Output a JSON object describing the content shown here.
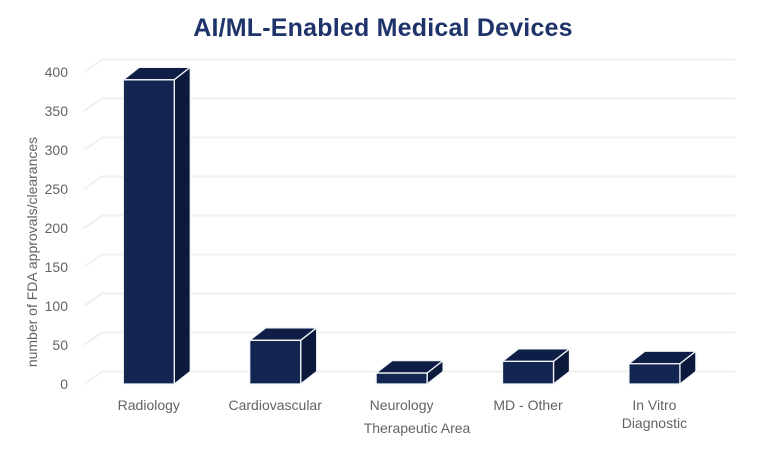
{
  "chart_data": {
    "type": "bar",
    "style": "3d",
    "title": "AI/ML-Enabled Medical Devices",
    "xlabel": "Therapeutic Area",
    "ylabel": "number of FDA approvals/clearances",
    "categories": [
      "Radiology",
      "Cardiovascular",
      "Neurology",
      "MD - Other",
      "In Vitro Diagnostic"
    ],
    "values": [
      390,
      56,
      14,
      29,
      26
    ],
    "yticks": [
      0,
      50,
      100,
      150,
      200,
      250,
      300,
      350,
      400
    ],
    "ylim": [
      0,
      400
    ],
    "grid": true,
    "legend": false,
    "colors": {
      "title": "#1e3369",
      "bar_front": "#132551",
      "bar_top": "#0f1e46",
      "bar_side": "#0b193c",
      "bar_edge": "#f3f5f9",
      "gridline": "#f0f0f0",
      "axis_label": "#636363",
      "background": "#ffffff"
    }
  }
}
